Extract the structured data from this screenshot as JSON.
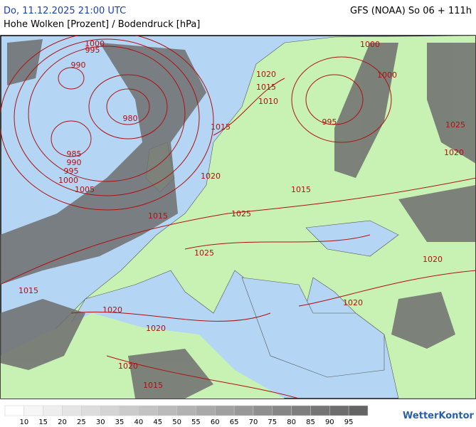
{
  "header": {
    "date": "Do, 11.12.2025 21:00 UTC",
    "model": "GFS (NOAA) So 06 + 111h",
    "subtitle": "Hohe Wolken [Prozent] / Bodendruck [hPa]"
  },
  "isobar_labels": [
    1000,
    995,
    990,
    980,
    985,
    990,
    995,
    1000,
    1005,
    1015,
    1020,
    1015,
    1025,
    1025,
    1015,
    1020,
    1020,
    1020,
    1015,
    1020,
    1015,
    1010,
    1000,
    1000,
    995,
    1025,
    1020,
    1015,
    1020,
    1020
  ],
  "legend": {
    "ticks": [
      10,
      15,
      20,
      25,
      30,
      35,
      40,
      45,
      50,
      55,
      60,
      65,
      70,
      75,
      80,
      85,
      90,
      95
    ]
  },
  "brand": "WetterKontor"
}
